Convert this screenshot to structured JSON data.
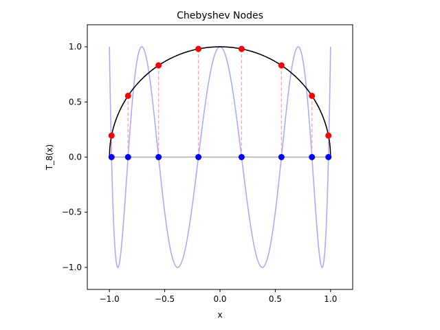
{
  "chart_data": {
    "type": "line",
    "title": "Chebyshev Nodes",
    "xlabel": "x",
    "ylabel": "T_8(x)",
    "xlim": [
      -1.2,
      1.2
    ],
    "ylim": [
      -1.2,
      1.2
    ],
    "xticks": [
      -1.0,
      -0.5,
      0.0,
      0.5,
      1.0
    ],
    "yticks": [
      -1.0,
      -0.5,
      0.0,
      0.5,
      1.0
    ],
    "xtick_labels": [
      "−1.0",
      "−0.5",
      "0.0",
      "0.5",
      "1.0"
    ],
    "ytick_labels": [
      "−1.0",
      "−0.5",
      "0.0",
      "0.5",
      "1.0"
    ],
    "grid": false,
    "series": [
      {
        "role": "chebyshev-polynomial",
        "function": "T_8(x)",
        "domain": [
          -1,
          1
        ],
        "color": "#aaaaff"
      },
      {
        "role": "unit-semicircle",
        "function": "sqrt(1 - x^2)",
        "domain": [
          -1,
          1
        ],
        "color": "#000000"
      },
      {
        "role": "baseline",
        "x": [
          -1,
          1
        ],
        "y": [
          0,
          0
        ],
        "color": "#aaaaaa"
      }
    ],
    "nodes": {
      "x": [
        0.9808,
        0.8315,
        0.5556,
        0.1951,
        -0.1951,
        -0.5556,
        -0.8315,
        -0.9808
      ],
      "y_circle": [
        0.1951,
        0.5556,
        0.8315,
        0.9808,
        0.9808,
        0.8315,
        0.5556,
        0.1951
      ],
      "circle_color": "#ff0000",
      "axis_color": "#0000ff",
      "connector_color": "#ffaaaa"
    }
  }
}
